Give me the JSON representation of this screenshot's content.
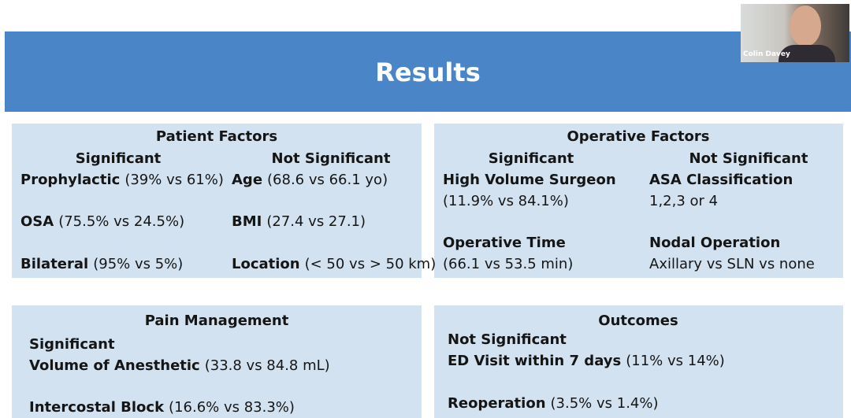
{
  "webcam": {
    "name": "Colin Davey"
  },
  "header": {
    "title": "Results"
  },
  "patient_factors": {
    "title": "Patient Factors",
    "significant": {
      "heading": "Significant",
      "items": [
        {
          "term": "Prophylactic",
          "detail": "(39% vs 61%)"
        },
        {
          "term": "OSA",
          "detail": "(75.5% vs 24.5%)"
        },
        {
          "term": "Bilateral",
          "detail": "(95% vs 5%)"
        }
      ]
    },
    "not_significant": {
      "heading": "Not Significant",
      "items": [
        {
          "term": "Age",
          "detail": "(68.6 vs 66.1 yo)"
        },
        {
          "term": "BMI",
          "detail": "(27.4 vs 27.1)"
        },
        {
          "term": "Location",
          "detail": "(< 50 vs > 50 km)"
        }
      ]
    }
  },
  "operative_factors": {
    "title": "Operative Factors",
    "significant": {
      "heading": "Significant",
      "items": [
        {
          "term": "High Volume Surgeon",
          "detail": "(11.9% vs 84.1%)"
        },
        {
          "term": "Operative Time",
          "detail": "(66.1 vs 53.5 min)"
        }
      ]
    },
    "not_significant": {
      "heading": "Not Significant",
      "items": [
        {
          "term": "ASA Classification",
          "detail": "1,2,3 or 4"
        },
        {
          "term": "Nodal Operation",
          "detail": "Axillary vs SLN vs none"
        }
      ]
    }
  },
  "pain_management": {
    "title": "Pain Management",
    "significant": {
      "heading": "Significant",
      "items": [
        {
          "term": "Volume of Anesthetic",
          "detail": "(33.8 vs 84.8 mL)"
        },
        {
          "term": "Intercostal Block",
          "detail": "(16.6% vs 83.3%)"
        }
      ]
    }
  },
  "outcomes": {
    "title": "Outcomes",
    "not_significant": {
      "heading": "Not Significant",
      "items": [
        {
          "term": "ED Visit within 7 days",
          "detail": "(11% vs 14%)"
        },
        {
          "term": "Reoperation",
          "detail": "(3.5% vs 1.4%)"
        }
      ]
    }
  }
}
